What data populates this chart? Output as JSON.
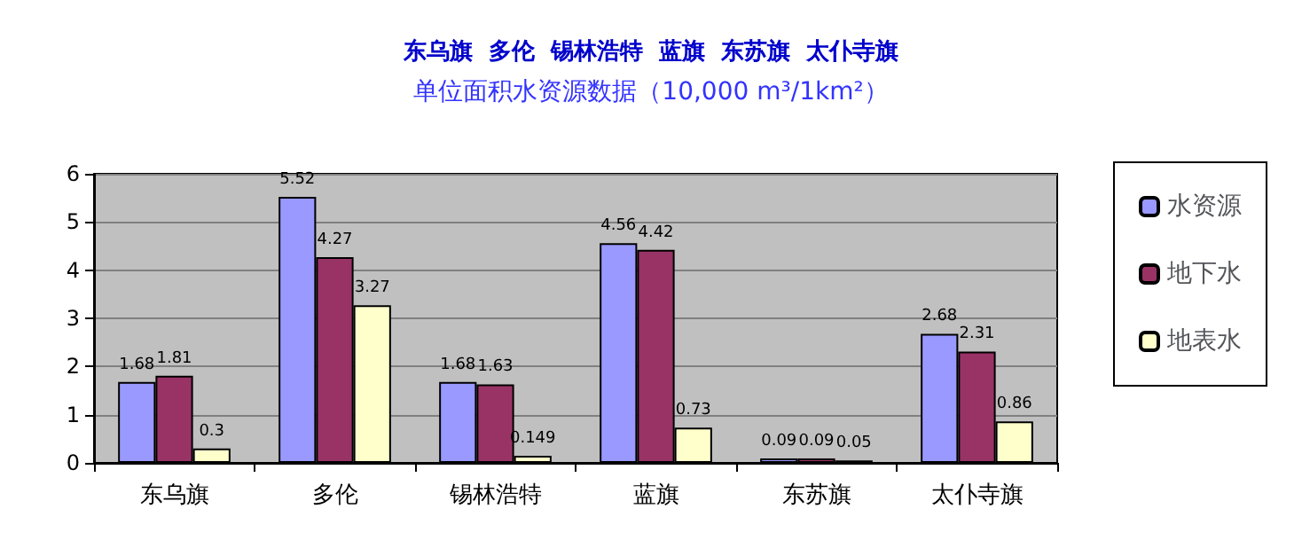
{
  "chart_data": {
    "type": "bar",
    "title": "东乌旗  多伦  锡林浩特  蓝旗  东苏旗  太仆寺旗",
    "subtitle": "单位面积水资源数据（10,000 m³/1km²）",
    "categories": [
      "东乌旗",
      "多伦",
      "锡林浩特",
      "蓝旗",
      "东苏旗",
      "太仆寺旗"
    ],
    "series": [
      {
        "name": "水资源",
        "color": "#9999ff",
        "values": [
          1.68,
          5.52,
          1.68,
          4.56,
          0.09,
          2.68
        ]
      },
      {
        "name": "地下水",
        "color": "#993366",
        "values": [
          1.81,
          4.27,
          1.63,
          4.42,
          0.09,
          2.31
        ]
      },
      {
        "name": "地表水",
        "color": "#ffffcc",
        "values": [
          0.3,
          3.27,
          0.149,
          0.73,
          0.05,
          0.86
        ]
      }
    ],
    "ylim": [
      0,
      6
    ],
    "yticks": [
      0,
      1,
      2,
      3,
      4,
      5,
      6
    ],
    "grid": "y",
    "legend": "right",
    "data_labels": true
  }
}
